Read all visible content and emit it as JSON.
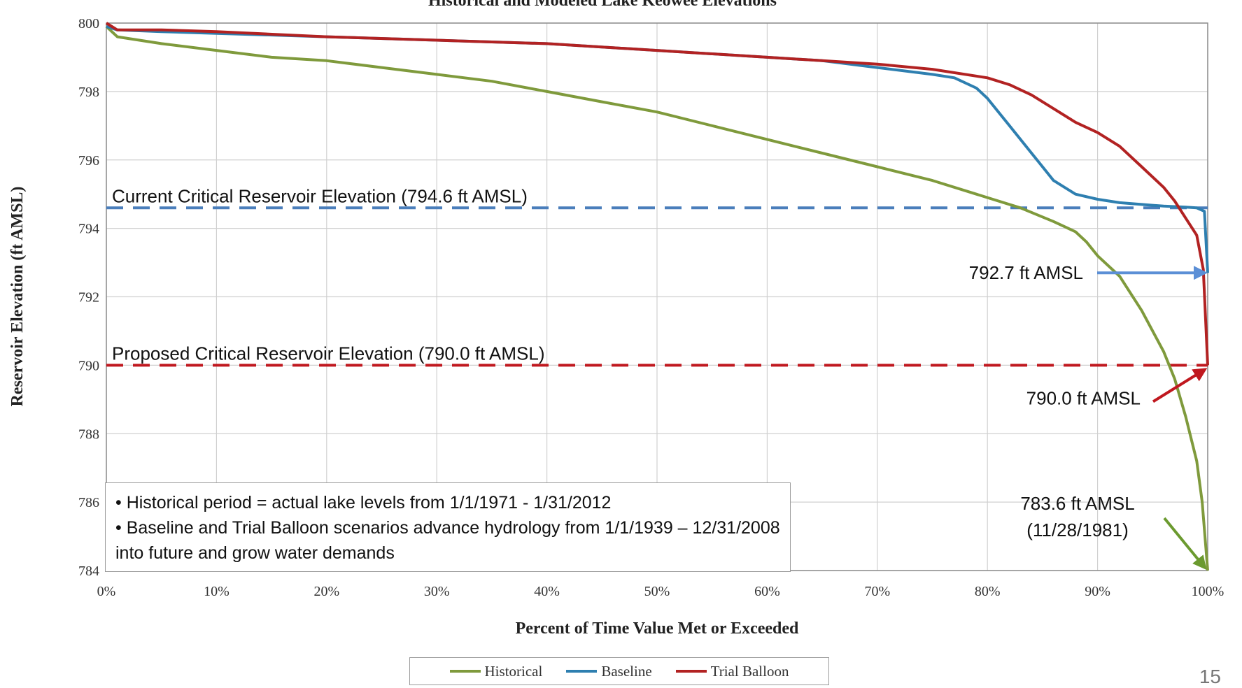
{
  "chart_data": {
    "type": "line",
    "title": "Historical and Modeled Lake Keowee Elevations",
    "xlabel": "Percent of Time Value Met or Exceeded",
    "ylabel": "Reservoir Elevation (ft AMSL)",
    "xlim": [
      0,
      100
    ],
    "ylim": [
      784,
      800
    ],
    "x_ticks": [
      "0%",
      "10%",
      "20%",
      "30%",
      "40%",
      "50%",
      "60%",
      "70%",
      "80%",
      "90%",
      "100%"
    ],
    "y_ticks": [
      "784",
      "786",
      "788",
      "790",
      "792",
      "794",
      "796",
      "798",
      "800"
    ],
    "grid": true,
    "legend_position": "bottom",
    "series": [
      {
        "name": "Historical",
        "color": "#7f9a3c",
        "x": [
          0,
          1,
          3,
          5,
          10,
          15,
          20,
          25,
          30,
          35,
          40,
          45,
          50,
          55,
          60,
          65,
          70,
          75,
          80,
          83,
          86,
          88,
          89,
          90,
          92,
          94,
          96,
          97,
          98,
          99,
          99.5,
          100
        ],
        "y": [
          799.9,
          799.6,
          799.5,
          799.4,
          799.2,
          799.0,
          798.9,
          798.7,
          798.5,
          798.3,
          798.0,
          797.7,
          797.4,
          797.0,
          796.6,
          796.2,
          795.8,
          795.4,
          794.9,
          794.6,
          794.2,
          793.9,
          793.6,
          793.2,
          792.6,
          791.6,
          790.4,
          789.6,
          788.5,
          787.2,
          786.0,
          784.0
        ]
      },
      {
        "name": "Baseline",
        "color": "#2e7fb0",
        "x": [
          0,
          1,
          5,
          10,
          20,
          30,
          40,
          50,
          60,
          65,
          70,
          75,
          77,
          79,
          80,
          82,
          84,
          85,
          86,
          88,
          90,
          92,
          94,
          96,
          98,
          99,
          99.7,
          100
        ],
        "y": [
          799.9,
          799.8,
          799.75,
          799.7,
          799.6,
          799.5,
          799.4,
          799.2,
          799.0,
          798.9,
          798.7,
          798.5,
          798.4,
          798.1,
          797.8,
          797.0,
          796.2,
          795.8,
          795.4,
          795.0,
          794.85,
          794.75,
          794.7,
          794.65,
          794.62,
          794.6,
          794.5,
          792.7
        ]
      },
      {
        "name": "Trial Balloon",
        "color": "#b22222",
        "x": [
          0,
          1,
          5,
          10,
          20,
          30,
          40,
          50,
          60,
          65,
          70,
          75,
          80,
          82,
          84,
          86,
          88,
          90,
          92,
          94,
          96,
          97,
          98,
          99,
          99.6,
          100
        ],
        "y": [
          800.0,
          799.8,
          799.8,
          799.75,
          799.6,
          799.5,
          799.4,
          799.2,
          799.0,
          798.9,
          798.8,
          798.65,
          798.4,
          798.2,
          797.9,
          797.5,
          797.1,
          796.8,
          796.4,
          795.8,
          795.2,
          794.8,
          794.3,
          793.8,
          792.8,
          790.0
        ]
      }
    ],
    "reference_lines": [
      {
        "label": "Current Critical Reservoir Elevation (794.6 ft AMSL)",
        "y": 794.6,
        "color": "#4a7ebb"
      },
      {
        "label": "Proposed Critical Reservoir Elevation (790.0 ft AMSL)",
        "y": 790.0,
        "color": "#c0181f"
      }
    ],
    "annotations": [
      {
        "text": "792.7 ft AMSL",
        "target_x": 100,
        "target_y": 792.7,
        "color": "#5b8fd6"
      },
      {
        "text": "790.0 ft AMSL",
        "target_x": 100,
        "target_y": 790.0,
        "color": "#c0181f"
      },
      {
        "text": "783.6 ft AMSL",
        "text2": "(11/28/1981)",
        "target_x": 100,
        "target_y": 784.0,
        "color": "#6b9a2f"
      }
    ]
  },
  "notes": [
    "• Historical period  = actual lake levels from 1/1/1971 - 1/31/2012",
    "• Baseline and Trial Balloon scenarios advance hydrology from  1/1/1939 – 12/31/2008 into future and grow water demands"
  ],
  "page_number": "15"
}
